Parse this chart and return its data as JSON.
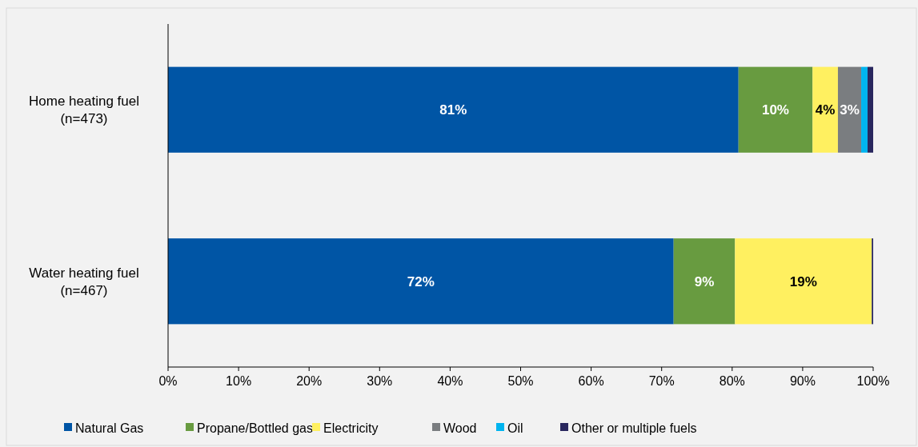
{
  "chart_data": {
    "type": "bar",
    "orientation": "horizontal",
    "stacked": true,
    "categories": [
      "Home heating fuel\n(n=473)",
      "Water heating fuel\n(n=467)"
    ],
    "series": [
      {
        "name": "Natural Gas",
        "color": "#0055a5",
        "values": [
          80.9,
          71.7
        ],
        "value_labels": [
          "81%",
          "72%"
        ]
      },
      {
        "name": "Propane/Bottled gas",
        "color": "#689b40",
        "values": [
          10.5,
          8.7
        ],
        "value_labels": [
          "10%",
          "9%"
        ]
      },
      {
        "name": "Electricity",
        "color": "#fff060",
        "values": [
          3.6,
          19.4
        ],
        "value_labels": [
          "4%",
          "19%"
        ]
      },
      {
        "name": "Wood",
        "color": "#7a7d80",
        "values": [
          3.3,
          0
        ],
        "value_labels": [
          "3%",
          null
        ]
      },
      {
        "name": "Oil",
        "color": "#00b4ef",
        "values": [
          0.9,
          0
        ],
        "value_labels": [
          null,
          null
        ]
      },
      {
        "name": "Other or multiple fuels",
        "color": "#29275e",
        "values": [
          0.8,
          0.2
        ],
        "value_labels": [
          null,
          null
        ]
      }
    ],
    "xlim": [
      0,
      100
    ],
    "xticks": [
      {
        "value": 0,
        "label": "0%"
      },
      {
        "value": 10,
        "label": "10%"
      },
      {
        "value": 20,
        "label": "20%"
      },
      {
        "value": 30,
        "label": "30%"
      },
      {
        "value": 40,
        "label": "40%"
      },
      {
        "value": 50,
        "label": "50%"
      },
      {
        "value": 60,
        "label": "60%"
      },
      {
        "value": 70,
        "label": "70%"
      },
      {
        "value": 80,
        "label": "80%"
      },
      {
        "value": 90,
        "label": "90%"
      },
      {
        "value": 100,
        "label": "100%"
      }
    ],
    "grid": false,
    "legend": "bottom"
  }
}
